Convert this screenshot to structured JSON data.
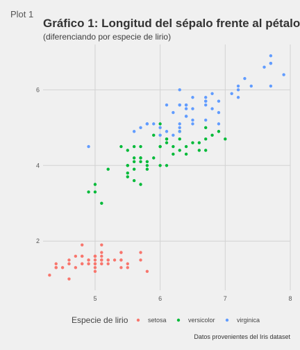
{
  "page": {
    "tab_label": "Plot 1"
  },
  "chart_data": {
    "type": "scatter",
    "title": "Gráfico 1: Longitud del sépalo frente al pétalo",
    "subtitle": "(diferenciando por especie de lirio)",
    "xlabel": "",
    "ylabel": "",
    "xlim": [
      4.2,
      8.0
    ],
    "ylim": [
      0.7,
      7.2
    ],
    "x_ticks": [
      5,
      6,
      7,
      8
    ],
    "y_ticks": [
      2,
      4,
      6
    ],
    "grid": true,
    "legend": {
      "title": "Especie de lirio",
      "position": "bottom"
    },
    "caption": "Datos provenientes del Iris dataset",
    "series": [
      {
        "name": "setosa",
        "color": "#F8766D",
        "points": [
          [
            5.1,
            1.4
          ],
          [
            4.9,
            1.4
          ],
          [
            4.7,
            1.3
          ],
          [
            4.6,
            1.5
          ],
          [
            5.0,
            1.4
          ],
          [
            5.4,
            1.7
          ],
          [
            4.6,
            1.4
          ],
          [
            5.0,
            1.5
          ],
          [
            4.4,
            1.4
          ],
          [
            4.9,
            1.5
          ],
          [
            5.4,
            1.5
          ],
          [
            4.8,
            1.6
          ],
          [
            4.8,
            1.4
          ],
          [
            4.3,
            1.1
          ],
          [
            5.8,
            1.2
          ],
          [
            5.7,
            1.5
          ],
          [
            5.4,
            1.3
          ],
          [
            5.1,
            1.4
          ],
          [
            5.7,
            1.7
          ],
          [
            5.1,
            1.5
          ],
          [
            5.4,
            1.7
          ],
          [
            5.1,
            1.5
          ],
          [
            4.6,
            1.0
          ],
          [
            5.1,
            1.7
          ],
          [
            4.8,
            1.9
          ],
          [
            5.0,
            1.6
          ],
          [
            5.0,
            1.6
          ],
          [
            5.2,
            1.5
          ],
          [
            5.2,
            1.4
          ],
          [
            4.7,
            1.6
          ],
          [
            4.8,
            1.6
          ],
          [
            5.4,
            1.5
          ],
          [
            5.2,
            1.5
          ],
          [
            5.5,
            1.4
          ],
          [
            4.9,
            1.5
          ],
          [
            5.0,
            1.2
          ],
          [
            5.5,
            1.3
          ],
          [
            4.9,
            1.4
          ],
          [
            4.4,
            1.3
          ],
          [
            5.1,
            1.5
          ],
          [
            5.0,
            1.3
          ],
          [
            4.5,
            1.3
          ],
          [
            4.4,
            1.3
          ],
          [
            5.0,
            1.6
          ],
          [
            5.1,
            1.9
          ],
          [
            4.8,
            1.4
          ],
          [
            5.1,
            1.6
          ],
          [
            4.6,
            1.4
          ],
          [
            5.3,
            1.5
          ],
          [
            5.0,
            1.4
          ]
        ]
      },
      {
        "name": "versicolor",
        "color": "#00BA38",
        "points": [
          [
            7.0,
            4.7
          ],
          [
            6.4,
            4.5
          ],
          [
            6.9,
            4.9
          ],
          [
            5.5,
            4.0
          ],
          [
            6.5,
            4.6
          ],
          [
            5.7,
            4.5
          ],
          [
            6.3,
            4.7
          ],
          [
            4.9,
            3.3
          ],
          [
            6.6,
            4.6
          ],
          [
            5.2,
            3.9
          ],
          [
            5.0,
            3.5
          ],
          [
            5.9,
            4.2
          ],
          [
            6.0,
            4.0
          ],
          [
            6.1,
            4.7
          ],
          [
            5.6,
            3.6
          ],
          [
            6.7,
            4.4
          ],
          [
            5.6,
            4.5
          ],
          [
            5.8,
            4.1
          ],
          [
            6.2,
            4.5
          ],
          [
            5.6,
            3.9
          ],
          [
            5.9,
            4.8
          ],
          [
            6.1,
            4.0
          ],
          [
            6.3,
            4.9
          ],
          [
            6.1,
            4.7
          ],
          [
            6.4,
            4.3
          ],
          [
            6.6,
            4.4
          ],
          [
            6.8,
            4.8
          ],
          [
            6.7,
            5.0
          ],
          [
            6.0,
            4.5
          ],
          [
            5.7,
            3.5
          ],
          [
            5.5,
            3.8
          ],
          [
            5.5,
            3.7
          ],
          [
            5.8,
            3.9
          ],
          [
            6.0,
            5.1
          ],
          [
            5.4,
            4.5
          ],
          [
            6.0,
            4.5
          ],
          [
            6.7,
            4.7
          ],
          [
            6.3,
            4.4
          ],
          [
            5.6,
            4.1
          ],
          [
            5.5,
            4.0
          ],
          [
            5.5,
            4.4
          ],
          [
            6.1,
            4.6
          ],
          [
            5.8,
            4.0
          ],
          [
            5.0,
            3.3
          ],
          [
            5.6,
            4.2
          ],
          [
            5.7,
            4.2
          ],
          [
            5.7,
            4.2
          ],
          [
            6.2,
            4.3
          ],
          [
            5.1,
            3.0
          ],
          [
            5.7,
            4.1
          ]
        ]
      },
      {
        "name": "virginica",
        "color": "#619CFF",
        "points": [
          [
            6.3,
            6.0
          ],
          [
            5.8,
            5.1
          ],
          [
            7.1,
            5.9
          ],
          [
            6.3,
            5.6
          ],
          [
            6.5,
            5.8
          ],
          [
            7.6,
            6.6
          ],
          [
            4.9,
            4.5
          ],
          [
            7.3,
            6.3
          ],
          [
            6.7,
            5.8
          ],
          [
            7.2,
            6.1
          ],
          [
            6.5,
            5.1
          ],
          [
            6.4,
            5.3
          ],
          [
            6.8,
            5.5
          ],
          [
            5.7,
            5.0
          ],
          [
            5.8,
            5.1
          ],
          [
            6.4,
            5.3
          ],
          [
            6.5,
            5.5
          ],
          [
            7.7,
            6.7
          ],
          [
            7.7,
            6.9
          ],
          [
            6.0,
            5.0
          ],
          [
            6.9,
            5.7
          ],
          [
            5.6,
            4.9
          ],
          [
            7.7,
            6.7
          ],
          [
            6.3,
            4.9
          ],
          [
            6.7,
            5.7
          ],
          [
            7.2,
            6.0
          ],
          [
            6.2,
            4.8
          ],
          [
            6.1,
            4.9
          ],
          [
            6.4,
            5.6
          ],
          [
            7.2,
            5.8
          ],
          [
            7.4,
            6.1
          ],
          [
            7.9,
            6.4
          ],
          [
            6.4,
            5.6
          ],
          [
            6.3,
            5.1
          ],
          [
            6.1,
            5.6
          ],
          [
            7.7,
            6.1
          ],
          [
            6.3,
            5.6
          ],
          [
            6.4,
            5.5
          ],
          [
            6.0,
            4.8
          ],
          [
            6.9,
            5.4
          ],
          [
            6.7,
            5.6
          ],
          [
            6.9,
            5.1
          ],
          [
            5.8,
            5.1
          ],
          [
            6.8,
            5.9
          ],
          [
            6.7,
            5.7
          ],
          [
            6.7,
            5.2
          ],
          [
            6.3,
            5.0
          ],
          [
            6.5,
            5.2
          ],
          [
            6.2,
            5.4
          ],
          [
            5.9,
            5.1
          ]
        ]
      }
    ]
  }
}
